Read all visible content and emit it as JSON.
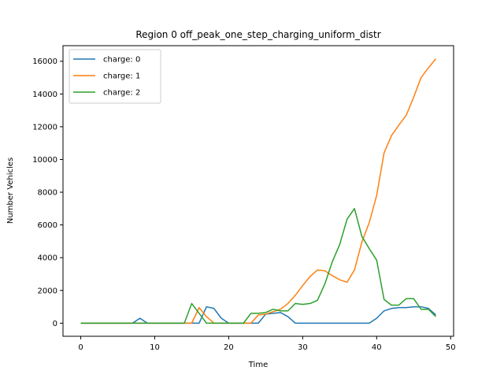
{
  "chart_data": {
    "type": "line",
    "title": "Region 0 off_peak_one_step_charging_uniform_distr",
    "xlabel": "Time",
    "ylabel": "Number Vehicles",
    "xlim": [
      -2.4,
      50.4
    ],
    "ylim": [
      -800,
      16950
    ],
    "xticks": [
      0,
      10,
      20,
      30,
      40,
      50
    ],
    "yticks": [
      0,
      2000,
      4000,
      6000,
      8000,
      10000,
      12000,
      14000,
      16000
    ],
    "grid": false,
    "legend_position": "top-left",
    "x": [
      0,
      1,
      2,
      3,
      4,
      5,
      6,
      7,
      8,
      9,
      10,
      11,
      12,
      13,
      14,
      15,
      16,
      17,
      18,
      19,
      20,
      21,
      22,
      23,
      24,
      25,
      26,
      27,
      28,
      29,
      30,
      31,
      32,
      33,
      34,
      35,
      36,
      37,
      38,
      39,
      40,
      41,
      42,
      43,
      44,
      45,
      46,
      47,
      48
    ],
    "series": [
      {
        "name": "charge: 0",
        "color": "#1f77b4",
        "values": [
          0,
          0,
          0,
          0,
          0,
          0,
          0,
          0,
          300,
          0,
          0,
          0,
          0,
          0,
          0,
          0,
          0,
          1000,
          900,
          300,
          0,
          0,
          0,
          0,
          0,
          550,
          600,
          650,
          400,
          0,
          0,
          0,
          0,
          0,
          0,
          0,
          0,
          0,
          0,
          0,
          300,
          750,
          900,
          950,
          950,
          1000,
          1000,
          900,
          500
        ]
      },
      {
        "name": "charge: 1",
        "color": "#ff7f0e",
        "values": [
          0,
          0,
          0,
          0,
          0,
          0,
          0,
          0,
          0,
          0,
          0,
          0,
          0,
          0,
          0,
          0,
          950,
          400,
          0,
          0,
          0,
          0,
          0,
          0,
          500,
          550,
          700,
          850,
          1200,
          1700,
          2300,
          2850,
          3250,
          3200,
          2900,
          2650,
          2500,
          3250,
          4950,
          6150,
          7800,
          10400,
          11450,
          12100,
          12700,
          13800,
          15000,
          15600,
          16150
        ]
      },
      {
        "name": "charge: 2",
        "color": "#2ca02c",
        "values": [
          0,
          0,
          0,
          0,
          0,
          0,
          0,
          0,
          0,
          0,
          0,
          0,
          0,
          0,
          0,
          1200,
          600,
          0,
          0,
          0,
          0,
          0,
          0,
          600,
          600,
          650,
          850,
          750,
          750,
          1200,
          1150,
          1200,
          1400,
          2400,
          3750,
          4800,
          6350,
          7000,
          5300,
          4550,
          3850,
          1450,
          1100,
          1100,
          1500,
          1500,
          850,
          850,
          400
        ]
      }
    ]
  }
}
